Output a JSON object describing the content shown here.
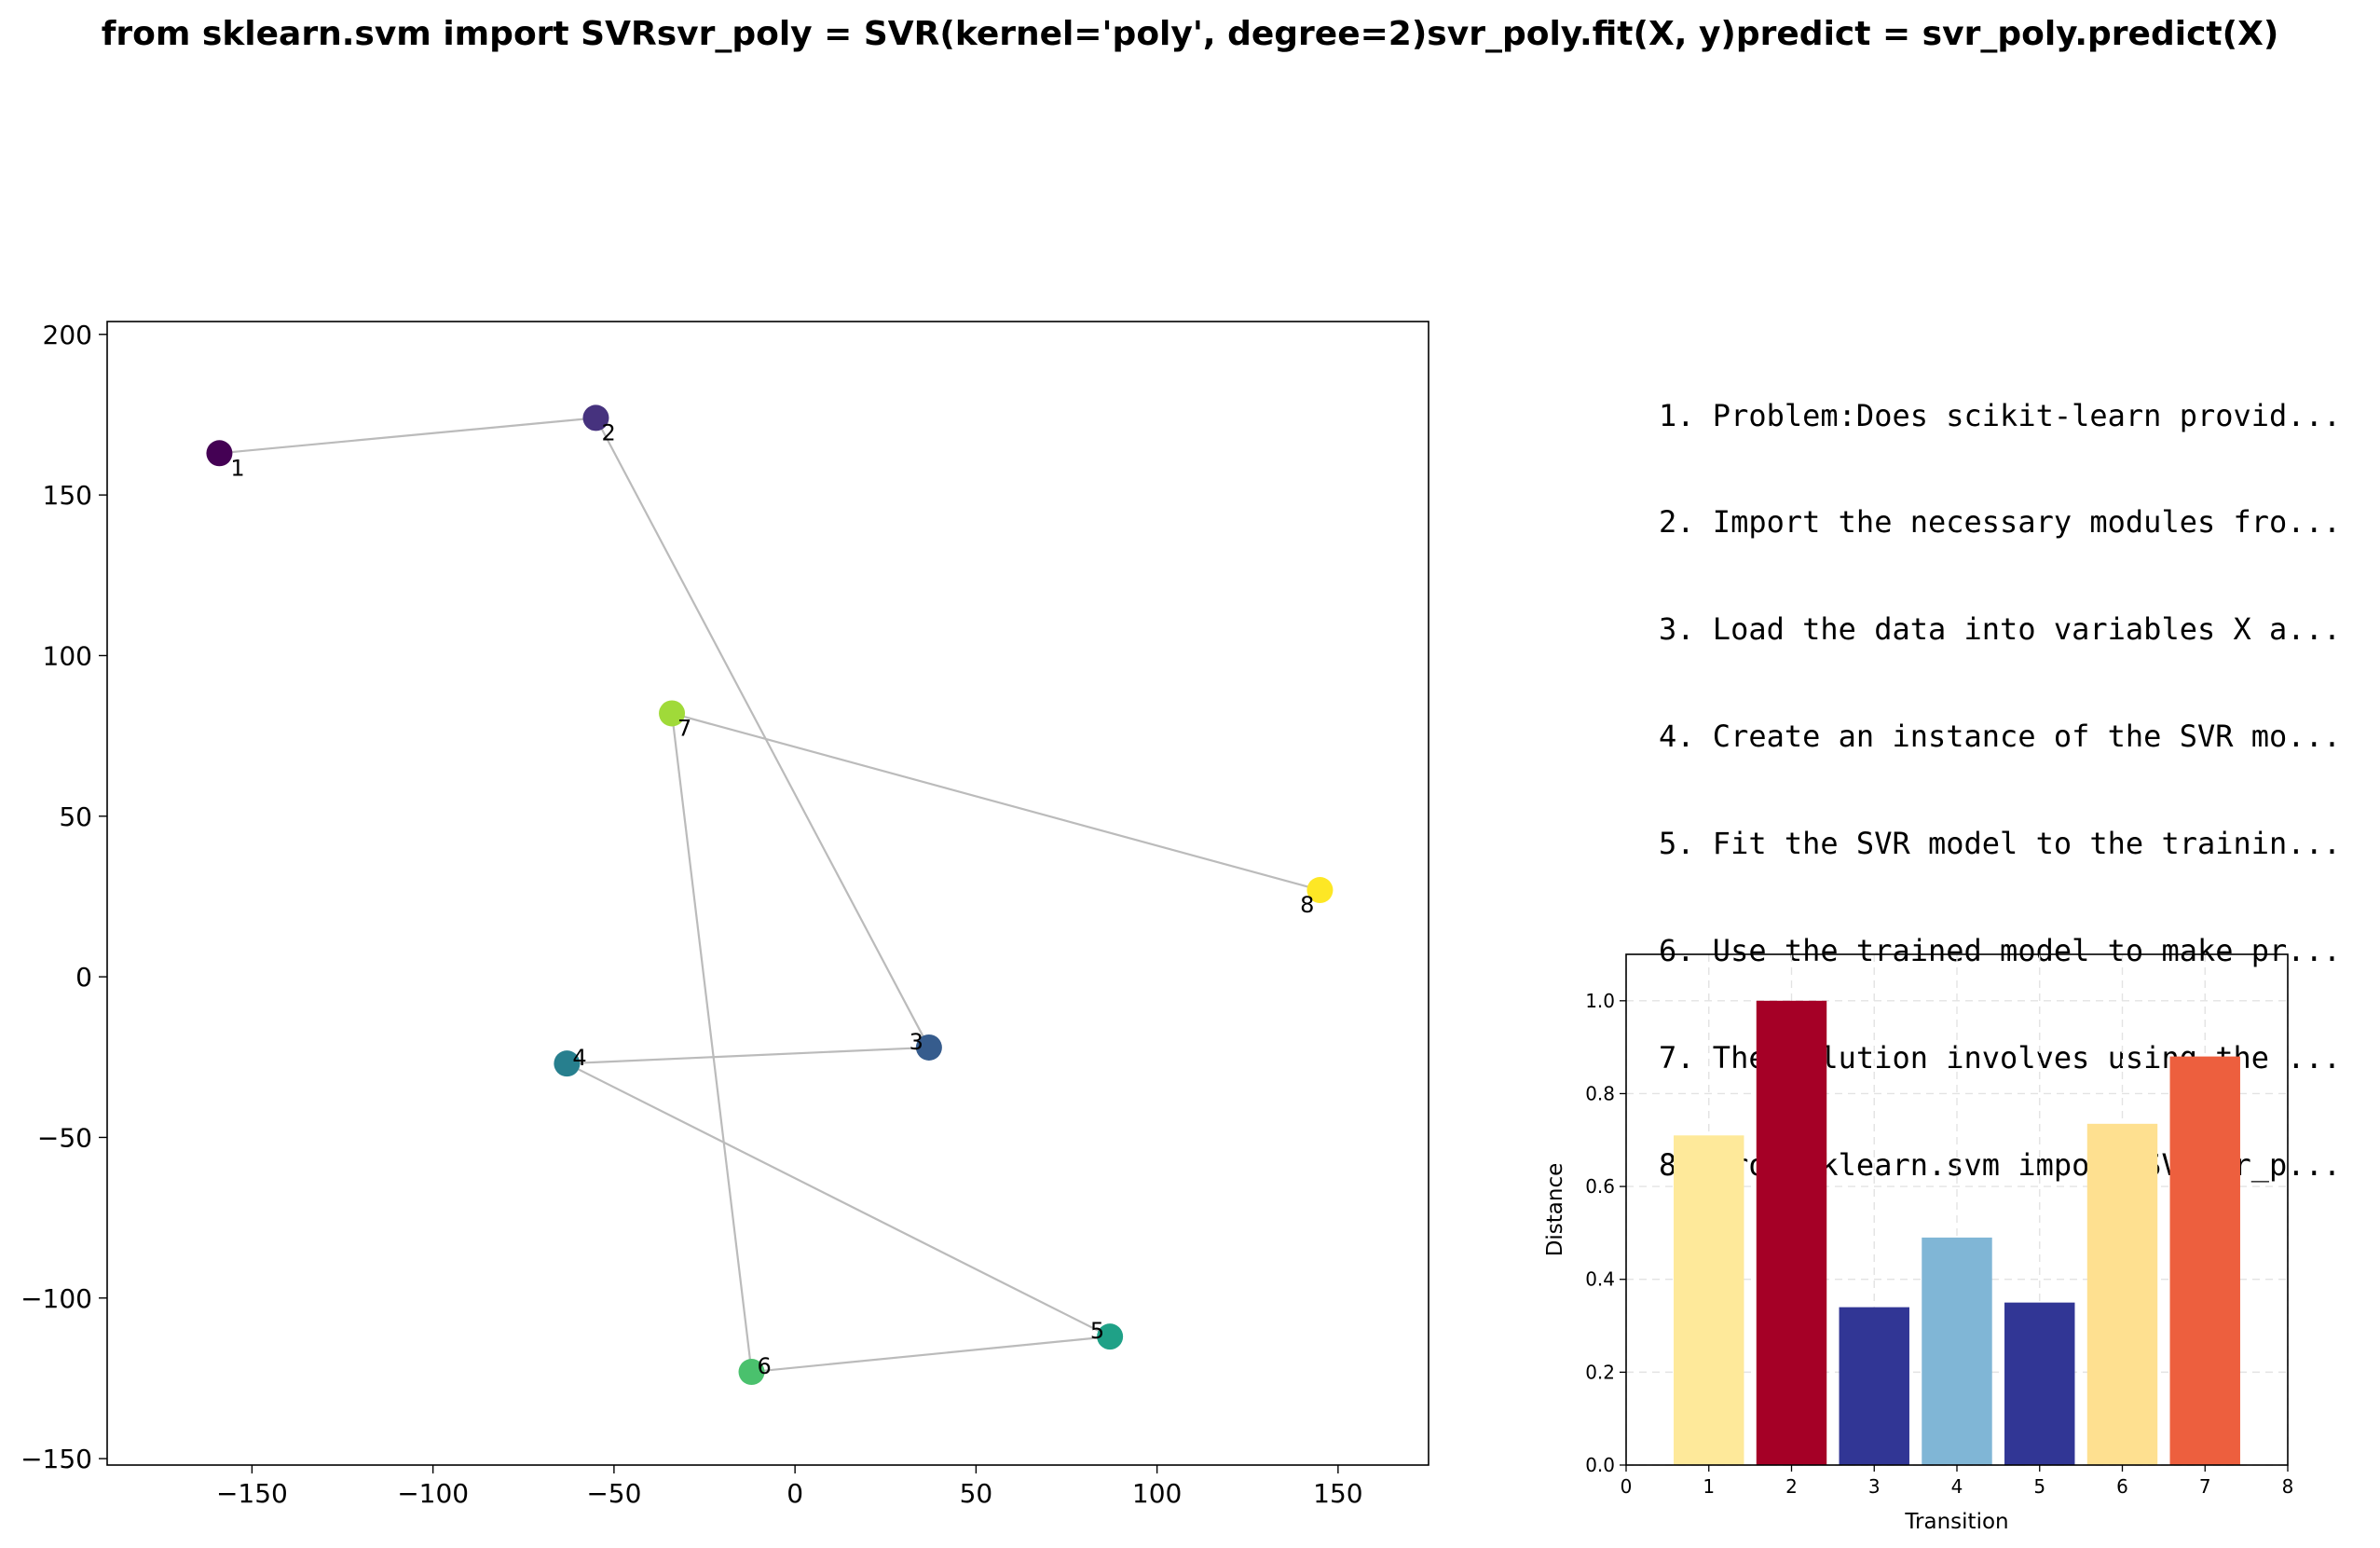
{
  "title": "from sklearn.svm import SVRsvr_poly = SVR(kernel='poly', degree=2)svr_poly.fit(X, y)predict = svr_poly.predict(X)",
  "steps": [
    "1. Problem:Does scikit-learn provid...",
    "2. Import the necessary modules fro...",
    "3. Load the data into variables X a...",
    "4. Create an instance of the SVR mo...",
    "5. Fit the SVR model to the trainin...",
    "6. Use the trained model to make pr...",
    "7. The solution involves using the ...",
    "8. from sklearn.svm import SVRsvr_p..."
  ],
  "chart_data": [
    {
      "type": "scatter",
      "title": "",
      "xlabel": "",
      "ylabel": "",
      "xlim": [
        -190,
        175
      ],
      "ylim": [
        -152,
        204
      ],
      "xticks": [
        -150,
        -100,
        -50,
        0,
        50,
        100,
        150
      ],
      "yticks": [
        -150,
        -100,
        -50,
        0,
        50,
        100,
        150,
        200
      ],
      "grid": false,
      "connected": true,
      "line_color": "#bbbbbb",
      "points": [
        {
          "label": "1",
          "x": -159,
          "y": 163,
          "color": "#440154"
        },
        {
          "label": "2",
          "x": -55,
          "y": 174,
          "color": "#46327e"
        },
        {
          "label": "3",
          "x": 37,
          "y": -22,
          "color": "#365c8d"
        },
        {
          "label": "4",
          "x": -63,
          "y": -27,
          "color": "#277f8e"
        },
        {
          "label": "5",
          "x": 87,
          "y": -112,
          "color": "#1fa187"
        },
        {
          "label": "6",
          "x": -12,
          "y": -123,
          "color": "#4ac16d"
        },
        {
          "label": "7",
          "x": -34,
          "y": 82,
          "color": "#a0da39"
        },
        {
          "label": "8",
          "x": 145,
          "y": 27,
          "color": "#fde725"
        }
      ]
    },
    {
      "type": "bar",
      "title": "",
      "xlabel": "Transition",
      "ylabel": "Distance",
      "xlim": [
        0,
        8
      ],
      "ylim": [
        0,
        1.1
      ],
      "xticks": [
        0,
        1,
        2,
        3,
        4,
        5,
        6,
        7,
        8
      ],
      "yticks": [
        0.0,
        0.2,
        0.4,
        0.6,
        0.8,
        1.0
      ],
      "grid": true,
      "categories": [
        "1",
        "2",
        "3",
        "4",
        "5",
        "6",
        "7"
      ],
      "values": [
        0.71,
        1.0,
        0.34,
        0.49,
        0.35,
        0.735,
        0.88
      ],
      "colors": [
        "#fee99a",
        "#a50026",
        "#313695",
        "#80b6d6",
        "#313695",
        "#fee090",
        "#ed5f3e"
      ]
    }
  ]
}
